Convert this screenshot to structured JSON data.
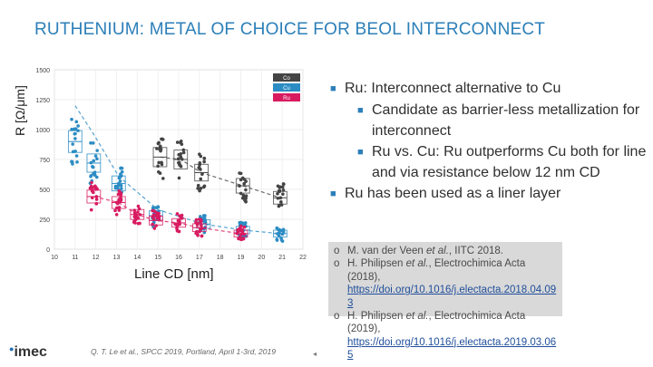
{
  "title": "RUTHENIUM: METAL OF CHOICE FOR BEOL INTERCONNECT",
  "bullets": [
    {
      "level": 1,
      "text": "Ru: Interconnect alternative to Cu"
    },
    {
      "level": 2,
      "text": "Candidate as barrier-less metallization for interconnect"
    },
    {
      "level": 2,
      "text": "Ru vs. Cu: Ru outperforms Cu both for line and via resistance below 12 nm CD"
    },
    {
      "level": 1,
      "text": "Ru has been used as a liner layer"
    }
  ],
  "references": [
    {
      "marker": "o",
      "pre": "M. van der Veen ",
      "etal": "et al.",
      "post": ", IITC 2018.",
      "link": ""
    },
    {
      "marker": "o",
      "pre": "H. Philipsen ",
      "etal": "et al.",
      "post": ", Electrochimica Acta (2018),",
      "link": "https://doi.org/10.1016/j.electacta.2018.04.093"
    },
    {
      "marker": "o",
      "pre": "H. Philipsen ",
      "etal": "et al.",
      "post": ", Electrochimica Acta (2019),",
      "link": "https://doi.org/10.1016/j.electacta.2019.03.065"
    }
  ],
  "footer": "Q. T. Le et al., SPCC 2019, Portland, April 1-3rd, 2019",
  "logo": "imec",
  "page_marker": "◂",
  "colors": {
    "title": "#2c7fb8",
    "Co": "#444444",
    "Cu": "#2b8cc4",
    "Ru": "#d81b60"
  },
  "chart_data": {
    "type": "scatter",
    "title": "",
    "xlabel": "Line CD [nm]",
    "ylabel": "R [Ω/μm]",
    "xlim": [
      10,
      22
    ],
    "ylim": [
      0,
      1500
    ],
    "xticks": [
      10,
      11,
      12,
      13,
      14,
      15,
      16,
      17,
      18,
      19,
      20,
      21,
      22
    ],
    "yticks": [
      0,
      250,
      500,
      750,
      1000,
      1250,
      1500
    ],
    "legend": [
      "Co",
      "Cu",
      "Ru"
    ],
    "legend_position": "top-right",
    "grid": true,
    "series": [
      {
        "name": "Co",
        "color": "#444444",
        "groups": [
          {
            "x": 15.1,
            "median": 770
          },
          {
            "x": 16.1,
            "median": 750
          },
          {
            "x": 17.1,
            "median": 640
          },
          {
            "x": 19.1,
            "median": 530
          },
          {
            "x": 20.9,
            "median": 430
          }
        ],
        "trend": [
          [
            15.1,
            770
          ],
          [
            16.1,
            750
          ],
          [
            17.1,
            640
          ],
          [
            19.1,
            530
          ],
          [
            20.9,
            430
          ]
        ]
      },
      {
        "name": "Cu",
        "color": "#2b8cc4",
        "groups": [
          {
            "x": 11.0,
            "median": 900
          },
          {
            "x": 11.9,
            "median": 720
          },
          {
            "x": 13.1,
            "median": 550
          },
          {
            "x": 14.9,
            "median": 280
          },
          {
            "x": 17.2,
            "median": 210
          },
          {
            "x": 19.1,
            "median": 160
          },
          {
            "x": 20.9,
            "median": 130
          }
        ],
        "trend": [
          [
            11.0,
            1200
          ],
          [
            11.9,
            960
          ],
          [
            13.1,
            610
          ],
          [
            15.0,
            330
          ],
          [
            17.2,
            210
          ],
          [
            19.1,
            160
          ],
          [
            20.9,
            130
          ]
        ]
      },
      {
        "name": "Ru",
        "color": "#d81b60",
        "groups": [
          {
            "x": 11.9,
            "median": 440
          },
          {
            "x": 13.1,
            "median": 390
          },
          {
            "x": 14.0,
            "median": 290
          },
          {
            "x": 14.9,
            "median": 240
          },
          {
            "x": 16.0,
            "median": 220
          },
          {
            "x": 17.0,
            "median": 180
          },
          {
            "x": 19.0,
            "median": 130
          }
        ],
        "trend": [
          [
            11.9,
            440
          ],
          [
            13.1,
            390
          ],
          [
            14.0,
            290
          ],
          [
            14.9,
            240
          ],
          [
            16.0,
            220
          ],
          [
            17.0,
            180
          ],
          [
            19.0,
            130
          ]
        ]
      }
    ]
  }
}
